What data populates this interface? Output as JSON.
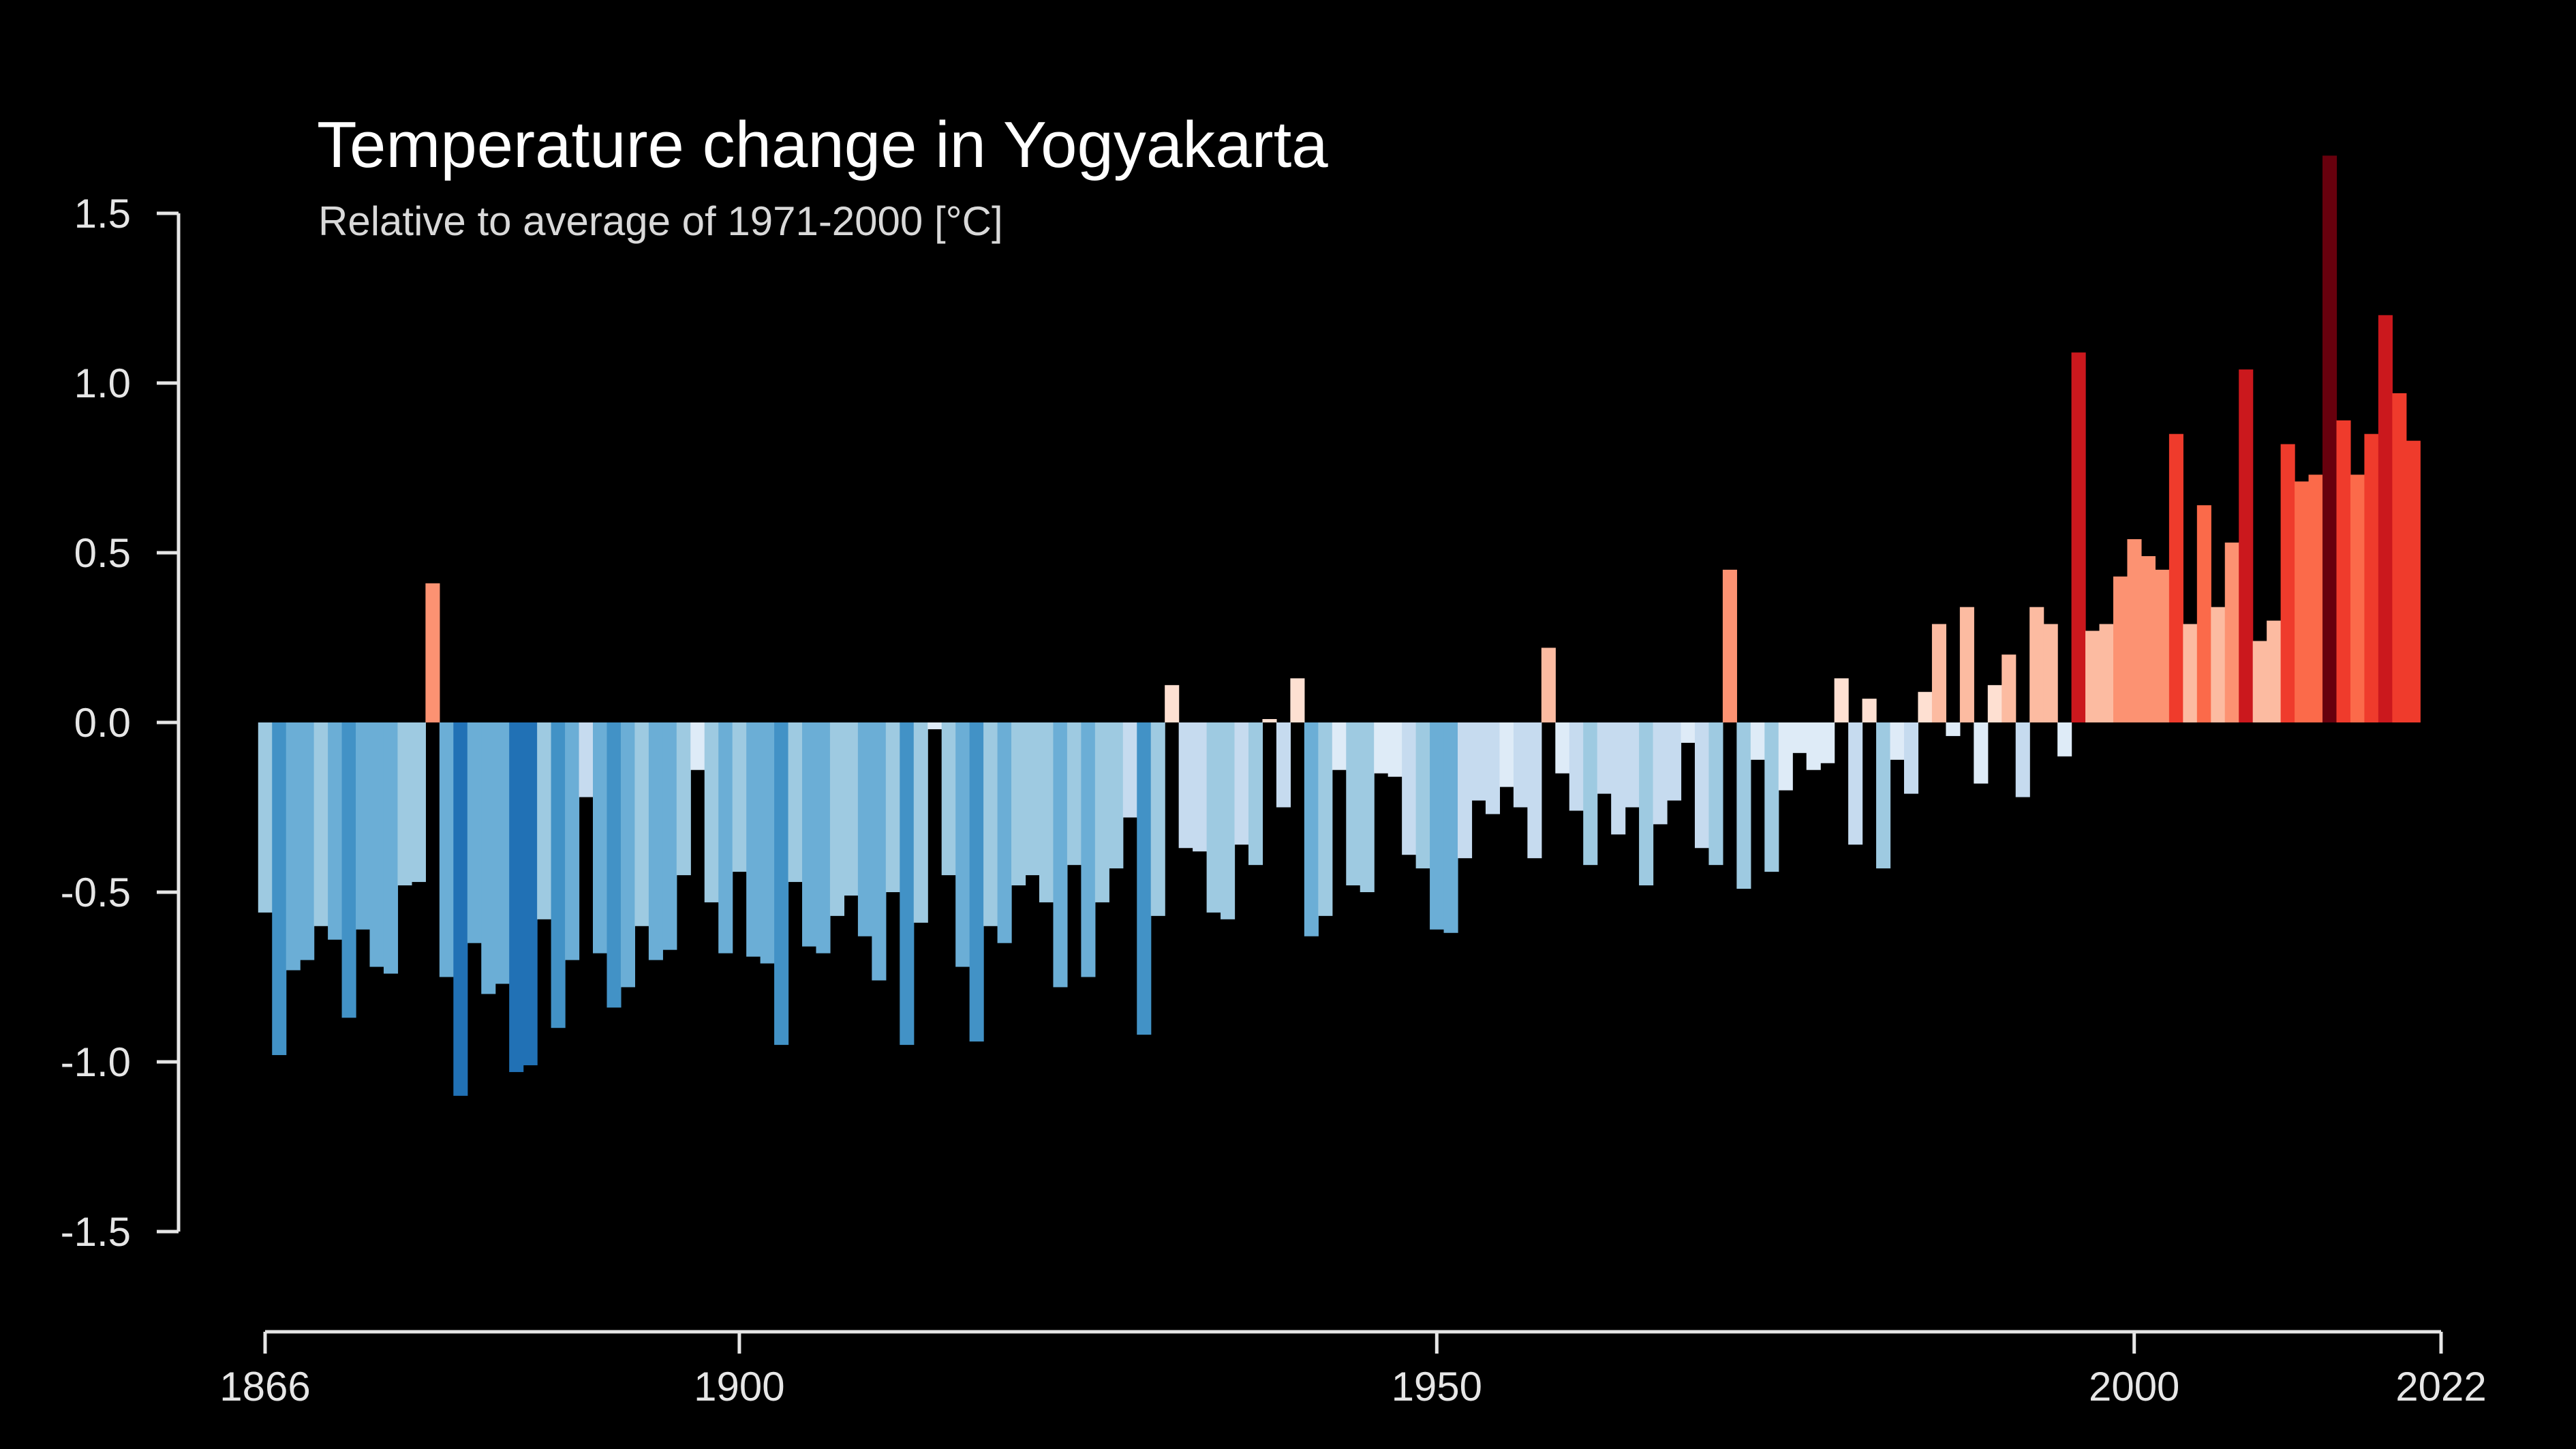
{
  "chart_data": {
    "type": "bar",
    "title": "Temperature change in Yogyakarta",
    "subtitle": "Relative to average of 1971-2000  [°C]",
    "xlabel": "",
    "ylabel": "",
    "x_start": 1866,
    "x_end": 2022,
    "ylim": [
      -1.5,
      1.5
    ],
    "y_ticks": [
      "1.5",
      "1.0",
      "0.5",
      "0.0",
      "-0.5",
      "-1.0",
      "-1.5"
    ],
    "y_tick_values": [
      1.5,
      1.0,
      0.5,
      0.0,
      -0.5,
      -1.0,
      -1.5
    ],
    "x_ticks": [
      "1866",
      "1900",
      "1950",
      "2000",
      "2022"
    ],
    "x_tick_values": [
      1866,
      1900,
      1950,
      2000,
      2022
    ],
    "grid": false,
    "background_color": "#000000",
    "color_scale": [
      "#08306b",
      "#08519c",
      "#2171b5",
      "#4292c6",
      "#6baed6",
      "#9ecae1",
      "#c6dbef",
      "#deebf7",
      "#fee0d2",
      "#fcbba1",
      "#fc9272",
      "#fb6a4a",
      "#ef3b2c",
      "#cb181d",
      "#a50f15",
      "#67000d"
    ],
    "series": [
      {
        "values": [
          -0.56,
          -0.98,
          -0.73,
          -0.7,
          -0.6,
          -0.64,
          -0.87,
          -0.61,
          -0.72,
          -0.74,
          -0.48,
          -0.47,
          0.41,
          -0.75,
          -1.1,
          -0.65,
          -0.8,
          -0.77,
          -1.03,
          -1.01,
          -0.58,
          -0.9,
          -0.7,
          -0.22,
          -0.68,
          -0.84,
          -0.78,
          -0.6,
          -0.7,
          -0.67,
          -0.45,
          -0.14,
          -0.53,
          -0.68,
          -0.44,
          -0.69,
          -0.71,
          -0.95,
          -0.47,
          -0.66,
          -0.68,
          -0.57,
          -0.51,
          -0.63,
          -0.76,
          -0.5,
          -0.95,
          -0.59,
          -0.02,
          -0.45,
          -0.72,
          -0.94,
          -0.6,
          -0.65,
          -0.48,
          -0.45,
          -0.53,
          -0.78,
          -0.42,
          -0.75,
          -0.53,
          -0.43,
          -0.28,
          -0.92,
          -0.57,
          0.11,
          -0.37,
          -0.38,
          -0.56,
          -0.58,
          -0.36,
          -0.42,
          0.01,
          -0.25,
          0.13,
          -0.63,
          -0.57,
          -0.14,
          -0.48,
          -0.5,
          -0.15,
          -0.16,
          -0.39,
          -0.43,
          -0.61,
          -0.62,
          -0.4,
          -0.23,
          -0.27,
          -0.19,
          -0.25,
          -0.4,
          0.22,
          -0.15,
          -0.26,
          -0.42,
          -0.21,
          -0.33,
          -0.25,
          -0.48,
          -0.3,
          -0.23,
          -0.06,
          -0.37,
          -0.42,
          0.45,
          -0.49,
          -0.11,
          -0.44,
          -0.2,
          -0.09,
          -0.14,
          -0.12,
          0.13,
          -0.36,
          0.07,
          -0.43,
          -0.11,
          -0.21,
          0.09,
          0.29,
          -0.04,
          0.34,
          -0.18,
          0.11,
          0.2,
          -0.22,
          0.34,
          0.29,
          -0.1,
          1.09,
          0.27,
          0.29,
          0.43,
          0.54,
          0.49,
          0.45,
          0.85,
          0.29,
          0.64,
          0.34,
          0.53,
          1.04,
          0.24,
          0.3,
          0.82,
          0.71,
          0.73,
          1.67,
          0.89,
          0.73,
          0.85,
          1.2,
          0.97,
          0.83
        ]
      }
    ]
  }
}
